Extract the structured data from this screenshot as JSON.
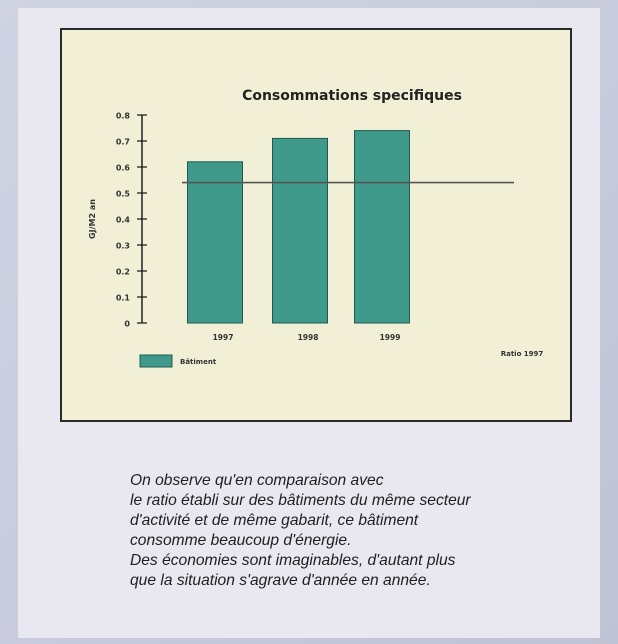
{
  "chart_data": {
    "type": "bar",
    "title": "Consommations specifiques",
    "ylabel": "GJ/M2 an",
    "xlabel": "",
    "ylim": [
      0,
      0.8
    ],
    "yticks": [
      "0",
      "0.1",
      "0.2",
      "0.3",
      "0.4",
      "0.5",
      "0.6",
      "0.7",
      "0.8"
    ],
    "categories": [
      "1997",
      "1998",
      "1999"
    ],
    "values": [
      0.62,
      0.71,
      0.74
    ],
    "reference_line": {
      "value": 0.54,
      "label": "Ratio 1997"
    },
    "legend": {
      "label": "Bâtiment",
      "placement": "bottom-left"
    },
    "grid": false,
    "colors": {
      "bar": "#3f9a8c",
      "bar_edge": "#1f5a52",
      "axis": "#222222",
      "reference": "#555555",
      "background": "#f1f0d6"
    }
  },
  "caption": {
    "lines": [
      "On observe qu'en comparaison avec",
      "le ratio établi sur des bâtiments du même secteur",
      "d'activité et de même gabarit, ce bâtiment",
      "consomme beaucoup d'énergie.",
      "Des économies sont imaginables, d'autant plus",
      "que la situation s'agrave d'année en année."
    ]
  }
}
